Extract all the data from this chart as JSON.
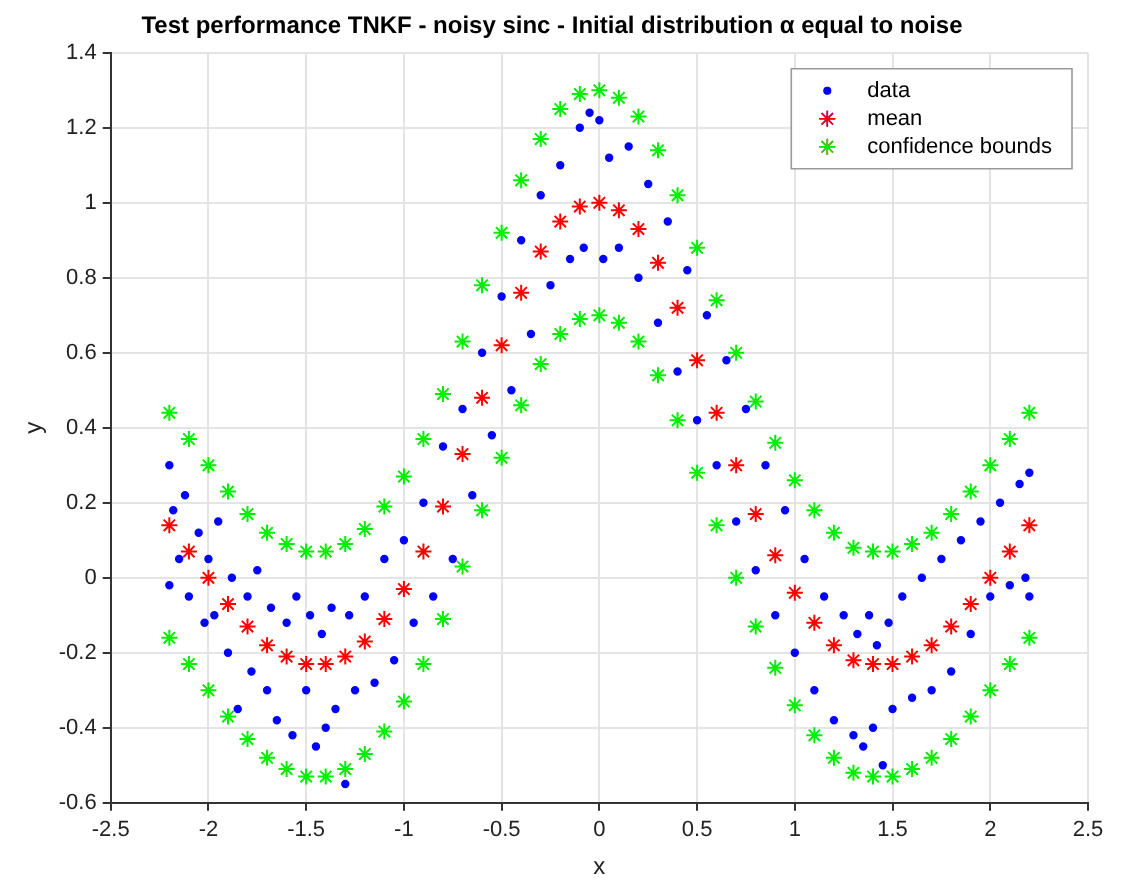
{
  "chart_data": {
    "type": "scatter",
    "title": "Test performance TNKF - noisy sinc - Initial distribution α equal to noise",
    "xlabel": "x",
    "ylabel": "y",
    "xlim": [
      -2.5,
      2.5
    ],
    "xticks": [
      -2.5,
      -2,
      -1.5,
      -1,
      -0.5,
      0,
      0.5,
      1,
      1.5,
      2,
      2.5
    ],
    "ylim": [
      -0.6,
      1.4
    ],
    "yticks": [
      -0.6,
      -0.4,
      -0.2,
      0,
      0.2,
      0.4,
      0.6,
      0.8,
      1,
      1.2,
      1.4
    ],
    "grid": true,
    "legend": "top right",
    "series": [
      {
        "name": "data",
        "color": "#0000ff",
        "marker": "circle",
        "x": [
          -2.2,
          -2.2,
          -2.18,
          -2.15,
          -2.12,
          -2.1,
          -2.05,
          -2.02,
          -2.0,
          -1.97,
          -1.95,
          -1.9,
          -1.88,
          -1.85,
          -1.8,
          -1.78,
          -1.75,
          -1.7,
          -1.68,
          -1.65,
          -1.6,
          -1.57,
          -1.55,
          -1.5,
          -1.48,
          -1.45,
          -1.42,
          -1.4,
          -1.37,
          -1.35,
          -1.3,
          -1.28,
          -1.25,
          -1.2,
          -1.15,
          -1.1,
          -1.05,
          -1.0,
          -0.95,
          -0.9,
          -0.85,
          -0.8,
          -0.75,
          -0.7,
          -0.65,
          -0.6,
          -0.55,
          -0.5,
          -0.45,
          -0.4,
          -0.35,
          -0.3,
          -0.25,
          -0.2,
          -0.15,
          -0.1,
          -0.08,
          -0.05,
          0.0,
          0.02,
          0.05,
          0.1,
          0.15,
          0.2,
          0.25,
          0.3,
          0.35,
          0.4,
          0.45,
          0.5,
          0.55,
          0.6,
          0.65,
          0.7,
          0.75,
          0.8,
          0.85,
          0.9,
          0.95,
          1.0,
          1.05,
          1.1,
          1.15,
          1.2,
          1.25,
          1.3,
          1.32,
          1.35,
          1.38,
          1.4,
          1.42,
          1.45,
          1.48,
          1.5,
          1.55,
          1.6,
          1.65,
          1.7,
          1.75,
          1.8,
          1.85,
          1.9,
          1.95,
          2.0,
          2.05,
          2.1,
          2.15,
          2.18,
          2.2,
          2.2
        ],
        "values": [
          0.3,
          -0.02,
          0.18,
          0.05,
          0.22,
          -0.05,
          0.12,
          -0.12,
          0.05,
          -0.1,
          0.15,
          -0.2,
          0.0,
          -0.35,
          -0.05,
          -0.25,
          0.02,
          -0.3,
          -0.08,
          -0.38,
          -0.12,
          -0.42,
          -0.05,
          -0.3,
          -0.1,
          -0.45,
          -0.15,
          -0.4,
          -0.08,
          -0.35,
          -0.55,
          -0.1,
          -0.3,
          -0.05,
          -0.28,
          0.05,
          -0.22,
          0.1,
          -0.12,
          0.2,
          -0.05,
          0.35,
          0.05,
          0.45,
          0.22,
          0.6,
          0.38,
          0.75,
          0.5,
          0.9,
          0.65,
          1.02,
          0.78,
          1.1,
          0.85,
          1.2,
          0.88,
          1.24,
          1.22,
          0.85,
          1.12,
          0.88,
          1.15,
          0.8,
          1.05,
          0.68,
          0.95,
          0.55,
          0.82,
          0.42,
          0.7,
          0.3,
          0.58,
          0.15,
          0.45,
          0.02,
          0.3,
          -0.1,
          0.18,
          -0.2,
          0.05,
          -0.3,
          -0.05,
          -0.38,
          -0.1,
          -0.42,
          -0.15,
          -0.45,
          -0.1,
          -0.4,
          -0.18,
          -0.5,
          -0.12,
          -0.35,
          -0.05,
          -0.32,
          0.0,
          -0.3,
          0.05,
          -0.25,
          0.1,
          -0.15,
          0.15,
          -0.05,
          0.2,
          -0.02,
          0.25,
          0.0,
          0.28,
          -0.05
        ]
      },
      {
        "name": "mean",
        "color": "#ff0000",
        "marker": "cross",
        "x": [
          -2.2,
          -2.1,
          -2.0,
          -1.9,
          -1.8,
          -1.7,
          -1.6,
          -1.5,
          -1.4,
          -1.3,
          -1.2,
          -1.1,
          -1.0,
          -0.9,
          -0.8,
          -0.7,
          -0.6,
          -0.5,
          -0.4,
          -0.3,
          -0.2,
          -0.1,
          0,
          0.1,
          0.2,
          0.3,
          0.4,
          0.5,
          0.6,
          0.7,
          0.8,
          0.9,
          1.0,
          1.1,
          1.2,
          1.3,
          1.4,
          1.5,
          1.6,
          1.7,
          1.8,
          1.9,
          2.0,
          2.1,
          2.2
        ],
        "values": [
          0.14,
          0.07,
          0.0,
          -0.07,
          -0.13,
          -0.18,
          -0.21,
          -0.23,
          -0.23,
          -0.21,
          -0.17,
          -0.11,
          -0.03,
          0.07,
          0.19,
          0.33,
          0.48,
          0.62,
          0.76,
          0.87,
          0.95,
          0.99,
          1.0,
          0.98,
          0.93,
          0.84,
          0.72,
          0.58,
          0.44,
          0.3,
          0.17,
          0.06,
          -0.04,
          -0.12,
          -0.18,
          -0.22,
          -0.23,
          -0.23,
          -0.21,
          -0.18,
          -0.13,
          -0.07,
          0.0,
          0.07,
          0.14
        ]
      },
      {
        "name": "confidence bounds",
        "color": "#00ee00",
        "marker": "cross",
        "x": [
          -2.2,
          -2.1,
          -2.0,
          -1.9,
          -1.8,
          -1.7,
          -1.6,
          -1.5,
          -1.4,
          -1.3,
          -1.2,
          -1.1,
          -1.0,
          -0.9,
          -0.8,
          -0.7,
          -0.6,
          -0.5,
          -0.4,
          -0.3,
          -0.2,
          -0.1,
          0,
          0.1,
          0.2,
          0.3,
          0.4,
          0.5,
          0.6,
          0.7,
          0.8,
          0.9,
          1.0,
          1.1,
          1.2,
          1.3,
          1.4,
          1.5,
          1.6,
          1.7,
          1.8,
          1.9,
          2.0,
          2.1,
          2.2,
          -2.2,
          -2.1,
          -2.0,
          -1.9,
          -1.8,
          -1.7,
          -1.6,
          -1.5,
          -1.4,
          -1.3,
          -1.2,
          -1.1,
          -1.0,
          -0.9,
          -0.8,
          -0.7,
          -0.6,
          -0.5,
          -0.4,
          -0.3,
          -0.2,
          -0.1,
          0,
          0.1,
          0.2,
          0.3,
          0.4,
          0.5,
          0.6,
          0.7,
          0.8,
          0.9,
          1.0,
          1.1,
          1.2,
          1.3,
          1.4,
          1.5,
          1.6,
          1.7,
          1.8,
          1.9,
          2.0,
          2.1,
          2.2
        ],
        "values": [
          0.44,
          0.37,
          0.3,
          0.23,
          0.17,
          0.12,
          0.09,
          0.07,
          0.07,
          0.09,
          0.13,
          0.19,
          0.27,
          0.37,
          0.49,
          0.63,
          0.78,
          0.92,
          1.06,
          1.17,
          1.25,
          1.29,
          1.3,
          1.28,
          1.23,
          1.14,
          1.02,
          0.88,
          0.74,
          0.6,
          0.47,
          0.36,
          0.26,
          0.18,
          0.12,
          0.08,
          0.07,
          0.07,
          0.09,
          0.12,
          0.17,
          0.23,
          0.3,
          0.37,
          0.44,
          -0.16,
          -0.23,
          -0.3,
          -0.37,
          -0.43,
          -0.48,
          -0.51,
          -0.53,
          -0.53,
          -0.51,
          -0.47,
          -0.41,
          -0.33,
          -0.23,
          -0.11,
          0.03,
          0.18,
          0.32,
          0.46,
          0.57,
          0.65,
          0.69,
          0.7,
          0.68,
          0.63,
          0.54,
          0.42,
          0.28,
          0.14,
          0.0,
          -0.13,
          -0.24,
          -0.34,
          -0.42,
          -0.48,
          -0.52,
          -0.53,
          -0.53,
          -0.51,
          -0.48,
          -0.43,
          -0.37,
          -0.3,
          -0.23,
          -0.16
        ]
      }
    ]
  }
}
